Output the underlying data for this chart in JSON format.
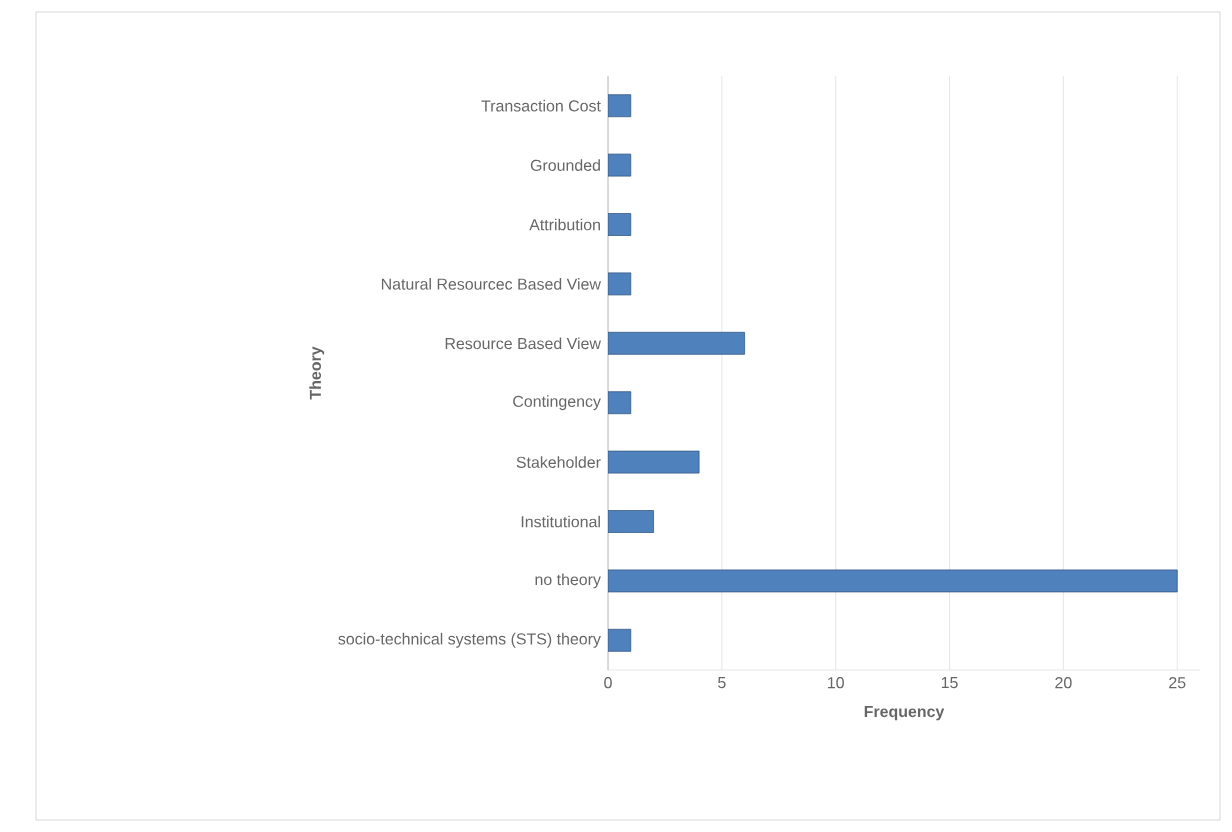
{
  "chart_data": {
    "type": "bar",
    "orientation": "horizontal",
    "xlabel": "Frequency",
    "ylabel": "Theory",
    "categories": [
      "Transaction Cost",
      "Grounded",
      "Attribution",
      "Natural Resourcec Based View",
      "Resource Based View",
      "Contingency",
      "Stakeholder",
      "Institutional",
      "no theory",
      "socio-technical systems (STS) theory"
    ],
    "values": [
      1,
      1,
      1,
      1,
      6,
      1,
      4,
      2,
      25,
      1
    ],
    "color": "#4f81bd",
    "xlim": [
      0,
      26
    ],
    "xticks": [
      0,
      5,
      10,
      15,
      20,
      25
    ],
    "grid": "x"
  }
}
